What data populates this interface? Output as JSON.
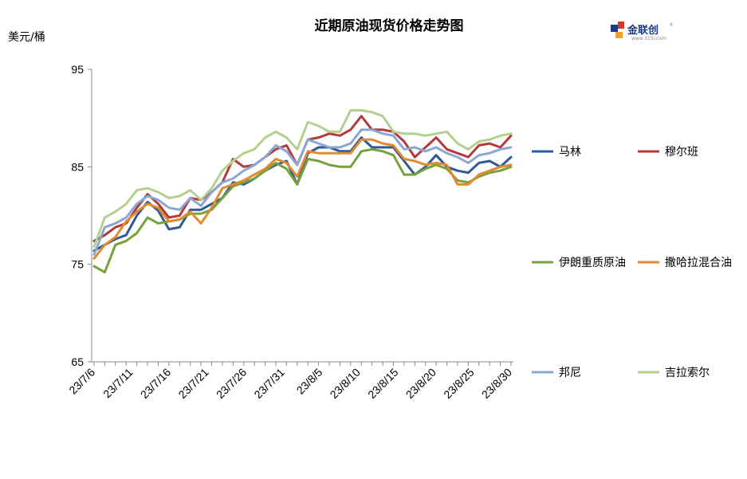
{
  "chart_data": {
    "type": "line",
    "title": "近期原油现货价格走势图",
    "ylabel": "美元/桶",
    "xlabel": "",
    "ylim": [
      65,
      95
    ],
    "yticks": [
      65,
      75,
      85,
      95
    ],
    "x": [
      "23/7/6",
      "23/7/7",
      "23/7/10",
      "23/7/11",
      "23/7/12",
      "23/7/13",
      "23/7/14",
      "23/7/17",
      "23/7/18",
      "23/7/19",
      "23/7/20",
      "23/7/21",
      "23/7/24",
      "23/7/25",
      "23/7/26",
      "23/7/27",
      "23/7/28",
      "23/7/31",
      "23/8/1",
      "23/8/2",
      "23/8/3",
      "23/8/4",
      "23/8/7",
      "23/8/8",
      "23/8/9",
      "23/8/10",
      "23/8/11",
      "23/8/14",
      "23/8/15",
      "23/8/16",
      "23/8/17",
      "23/8/18",
      "23/8/21",
      "23/8/22",
      "23/8/23",
      "23/8/24",
      "23/8/25",
      "23/8/28",
      "23/8/29",
      "23/8/30"
    ],
    "x_tick_labels": [
      "23/7/6",
      "23/7/11",
      "23/7/16",
      "23/7/21",
      "23/7/26",
      "23/7/31",
      "23/8/5",
      "23/8/10",
      "23/8/15",
      "23/8/20",
      "23/8/25",
      "23/8/30"
    ],
    "grid": false,
    "legend_position": "right",
    "series": [
      {
        "name": "马林",
        "color": "#2e5a9a",
        "values": [
          76.4,
          77.0,
          77.6,
          78.0,
          80.0,
          81.4,
          80.5,
          78.6,
          78.8,
          80.6,
          80.6,
          81.2,
          81.8,
          83.4,
          83.2,
          83.8,
          84.6,
          85.2,
          85.6,
          83.2,
          86.4,
          87.0,
          87.0,
          86.6,
          86.6,
          88.0,
          87.0,
          87.0,
          87.0,
          85.6,
          84.2,
          85.0,
          86.2,
          85.0,
          84.6,
          84.4,
          85.4,
          85.6,
          85.0,
          86.0
        ]
      },
      {
        "name": "穆尔班",
        "color": "#b23a3a",
        "values": [
          77.4,
          78.0,
          78.8,
          79.2,
          80.8,
          82.2,
          81.2,
          79.8,
          80.0,
          81.8,
          81.6,
          82.4,
          83.4,
          85.8,
          85.0,
          85.2,
          86.0,
          86.8,
          87.2,
          85.2,
          87.8,
          88.0,
          88.4,
          88.2,
          88.8,
          90.2,
          88.8,
          88.8,
          88.6,
          87.6,
          86.0,
          87.0,
          88.0,
          86.8,
          86.4,
          86.0,
          87.2,
          87.4,
          87.0,
          88.2
        ]
      },
      {
        "name": "伊朗重质原油",
        "color": "#77a23a",
        "values": [
          74.8,
          74.2,
          77.0,
          77.4,
          78.2,
          79.8,
          79.2,
          79.4,
          79.6,
          80.2,
          80.2,
          80.6,
          81.8,
          83.0,
          83.4,
          83.8,
          84.6,
          85.4,
          84.8,
          83.2,
          85.8,
          85.6,
          85.2,
          85.0,
          85.0,
          86.6,
          86.8,
          86.6,
          86.2,
          84.2,
          84.2,
          84.8,
          85.2,
          84.8,
          83.6,
          83.4,
          84.0,
          84.4,
          84.6,
          85.0
        ]
      },
      {
        "name": "撒哈拉混合油",
        "color": "#e38a2e",
        "values": [
          75.6,
          77.0,
          77.8,
          79.4,
          80.4,
          81.2,
          80.8,
          79.4,
          79.6,
          80.4,
          79.2,
          80.8,
          82.8,
          83.2,
          83.6,
          84.2,
          84.8,
          85.8,
          85.4,
          84.0,
          86.6,
          86.4,
          86.4,
          86.4,
          86.4,
          87.8,
          87.8,
          87.4,
          87.2,
          85.8,
          85.6,
          85.2,
          85.4,
          85.2,
          83.2,
          83.2,
          84.2,
          84.6,
          85.0,
          85.2
        ]
      },
      {
        "name": "邦尼",
        "color": "#8aa6d2",
        "values": [
          76.0,
          78.8,
          79.2,
          79.8,
          81.2,
          82.0,
          81.6,
          80.8,
          80.6,
          81.8,
          81.0,
          82.4,
          83.4,
          83.8,
          84.6,
          85.2,
          86.0,
          87.2,
          86.6,
          85.2,
          87.8,
          87.4,
          87.0,
          87.0,
          87.4,
          88.8,
          88.8,
          88.4,
          88.2,
          86.8,
          87.0,
          86.6,
          87.0,
          86.4,
          86.0,
          85.4,
          86.2,
          86.4,
          86.8,
          87.0
        ]
      },
      {
        "name": "吉拉索尔",
        "color": "#b5cf8f",
        "values": [
          76.8,
          79.8,
          80.4,
          81.2,
          82.6,
          82.8,
          82.4,
          81.8,
          82.0,
          82.6,
          81.6,
          82.8,
          84.6,
          85.6,
          86.4,
          86.8,
          88.0,
          88.6,
          88.0,
          86.8,
          89.6,
          89.2,
          88.6,
          88.6,
          90.8,
          90.8,
          90.6,
          90.2,
          88.6,
          88.4,
          88.4,
          88.2,
          88.4,
          88.6,
          87.4,
          86.8,
          87.6,
          87.8,
          88.2,
          88.4
        ]
      }
    ]
  },
  "logo": {
    "text": "金联创",
    "url": "www.315i.com",
    "reg": "®"
  }
}
